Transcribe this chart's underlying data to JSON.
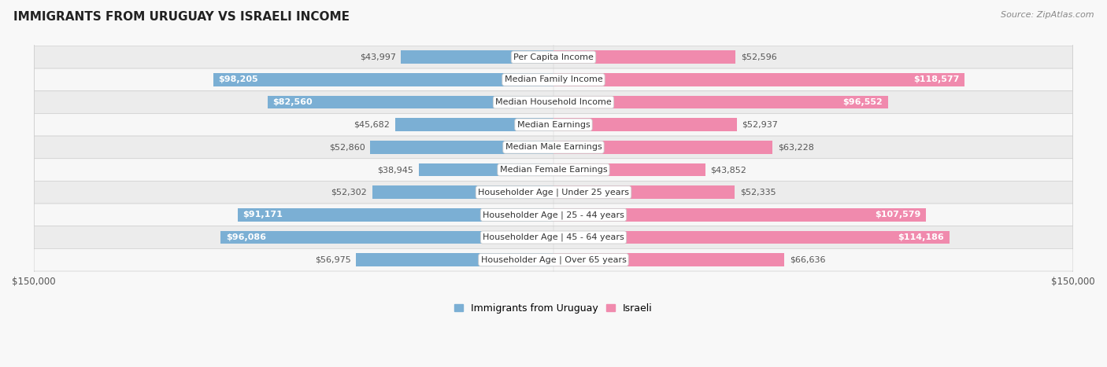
{
  "title": "IMMIGRANTS FROM URUGUAY VS ISRAELI INCOME",
  "source": "Source: ZipAtlas.com",
  "categories": [
    "Per Capita Income",
    "Median Family Income",
    "Median Household Income",
    "Median Earnings",
    "Median Male Earnings",
    "Median Female Earnings",
    "Householder Age | Under 25 years",
    "Householder Age | 25 - 44 years",
    "Householder Age | 45 - 64 years",
    "Householder Age | Over 65 years"
  ],
  "uruguay_values": [
    43997,
    98205,
    82560,
    45682,
    52860,
    38945,
    52302,
    91171,
    96086,
    56975
  ],
  "israeli_values": [
    52596,
    118577,
    96552,
    52937,
    63228,
    43852,
    52335,
    107579,
    114186,
    66636
  ],
  "uruguay_labels": [
    "$43,997",
    "$98,205",
    "$82,560",
    "$45,682",
    "$52,860",
    "$38,945",
    "$52,302",
    "$91,171",
    "$96,086",
    "$56,975"
  ],
  "israeli_labels": [
    "$52,596",
    "$118,577",
    "$96,552",
    "$52,937",
    "$63,228",
    "$43,852",
    "$52,335",
    "$107,579",
    "$114,186",
    "$66,636"
  ],
  "uruguay_color": "#7bafd4",
  "israeli_color": "#f08aad",
  "uruguay_color_dark": "#5b8fc4",
  "israeli_color_dark": "#e85a8a",
  "bar_height": 0.58,
  "xlim": 150000,
  "row_colors": [
    "#ececec",
    "#f7f7f7"
  ],
  "legend_label_uruguay": "Immigrants from Uruguay",
  "legend_label_israeli": "Israeli",
  "inside_label_threshold": 75000,
  "title_fontsize": 11,
  "source_fontsize": 8,
  "label_fontsize": 8,
  "cat_fontsize": 8
}
